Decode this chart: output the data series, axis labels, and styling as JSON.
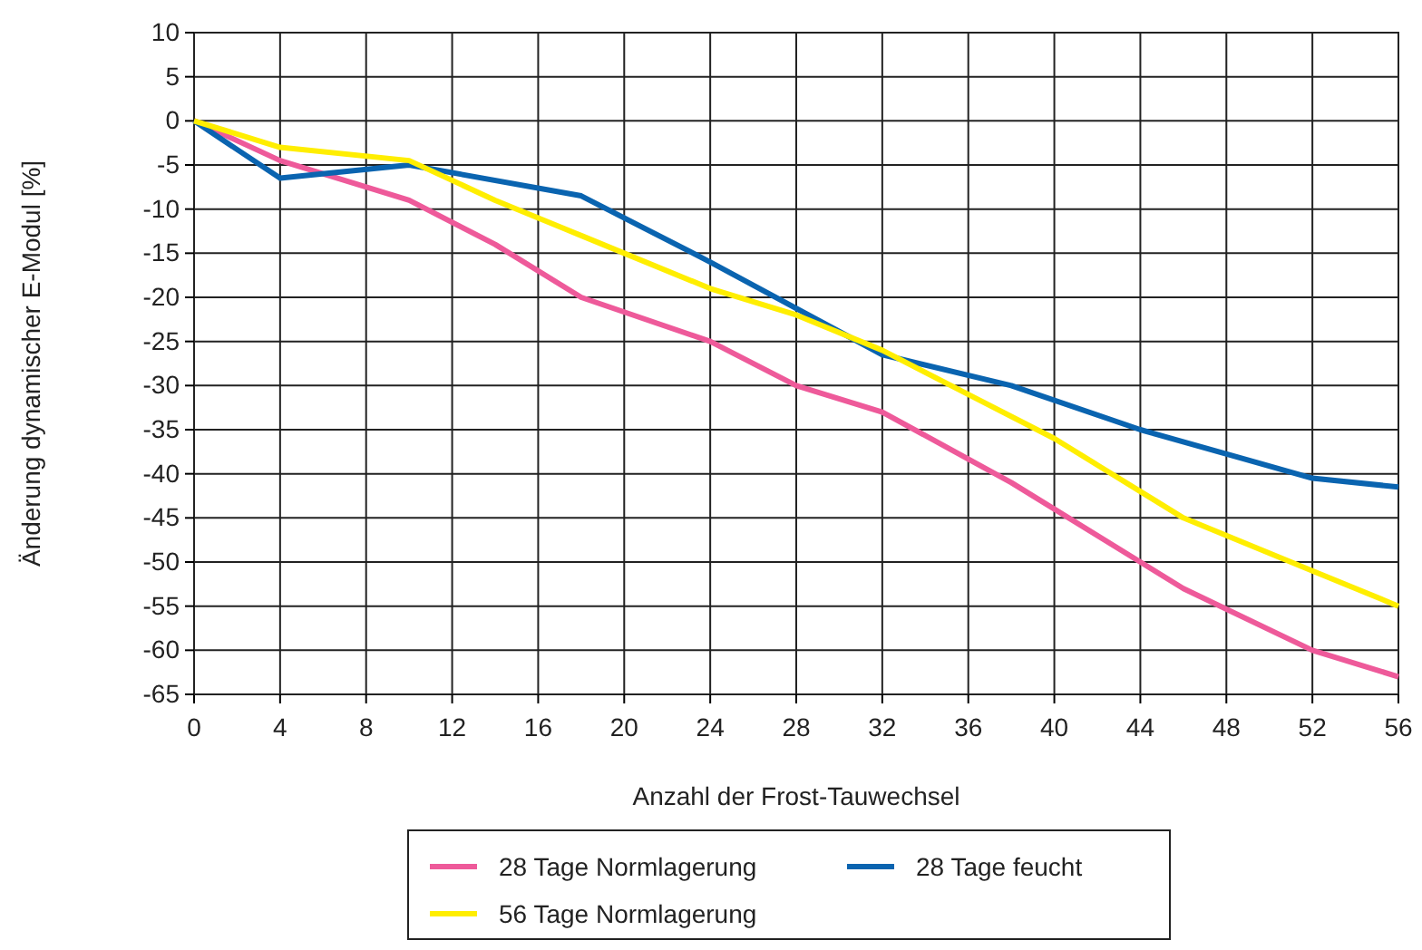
{
  "chart_data": {
    "type": "line",
    "xlabel": "Anzahl der Frost-Tauwechsel",
    "ylabel": "Änderung dynamischer E-Modul [%]",
    "xlim": [
      0,
      56
    ],
    "xticks": [
      0,
      4,
      8,
      12,
      16,
      20,
      24,
      28,
      32,
      36,
      40,
      44,
      48,
      52,
      56
    ],
    "ylim": [
      -65,
      10
    ],
    "yticks": [
      10,
      5,
      0,
      -5,
      -10,
      -15,
      -20,
      -25,
      -30,
      -35,
      -40,
      -45,
      -50,
      -55,
      -60,
      -65
    ],
    "grid": true,
    "legend": "bottom",
    "marker": "none",
    "line_style": "solid",
    "series": [
      {
        "name": "28 Tage Normlagerung",
        "color": "#ee5a9a",
        "x": [
          0,
          4,
          10,
          14,
          18,
          24,
          28,
          32,
          38,
          44,
          46,
          52,
          56
        ],
        "values": [
          0,
          -4.5,
          -9,
          -14,
          -20,
          -25,
          -30,
          -33,
          -41,
          -50,
          -53,
          -60,
          -63
        ]
      },
      {
        "name": "28 Tage feucht",
        "color": "#0a64b0",
        "x": [
          0,
          4,
          10,
          18,
          24,
          32,
          38,
          44,
          52,
          56
        ],
        "values": [
          0,
          -6.5,
          -5,
          -8.5,
          -16,
          -26.5,
          -30,
          -35,
          -40.5,
          -41.5
        ]
      },
      {
        "name": "56 Tage Normlagerung",
        "color": "#ffee00",
        "x": [
          0,
          4,
          10,
          14,
          18,
          24,
          28,
          32,
          36,
          40,
          42,
          46,
          52,
          56
        ],
        "values": [
          0,
          -3,
          -4.5,
          -9,
          -13,
          -19,
          -22,
          -26,
          -31,
          -36,
          -39,
          -45,
          -51,
          -55
        ]
      }
    ]
  }
}
